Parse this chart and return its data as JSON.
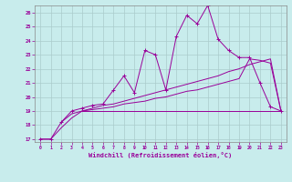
{
  "xlabel": "Windchill (Refroidissement éolien,°C)",
  "background_color": "#c8ecec",
  "line_color": "#990099",
  "grid_color": "#aacccc",
  "xmin": 0,
  "xmax": 23,
  "ymin": 17,
  "ymax": 26,
  "x_ticks": [
    0,
    1,
    2,
    3,
    4,
    5,
    6,
    7,
    8,
    9,
    10,
    11,
    12,
    13,
    14,
    15,
    16,
    17,
    18,
    19,
    20,
    21,
    22,
    23
  ],
  "y_ticks": [
    17,
    18,
    19,
    20,
    21,
    22,
    23,
    24,
    25,
    26
  ],
  "series1_x": [
    0,
    1,
    2,
    3,
    4,
    5,
    6,
    7,
    8,
    9,
    10,
    11,
    12,
    13,
    14,
    15,
    16,
    17,
    18,
    19,
    20,
    21,
    22,
    23
  ],
  "series1_y": [
    17.0,
    17.0,
    18.2,
    19.0,
    19.2,
    19.4,
    19.5,
    20.5,
    21.5,
    20.3,
    23.3,
    23.0,
    20.5,
    24.3,
    25.8,
    25.2,
    26.5,
    24.1,
    23.3,
    22.8,
    22.8,
    21.0,
    19.3,
    19.0
  ],
  "series2_x": [
    2,
    3,
    4,
    5,
    6,
    7,
    8,
    9,
    10,
    11,
    12,
    13,
    14,
    15,
    16,
    17,
    18,
    19,
    20,
    21,
    22,
    23
  ],
  "series2_y": [
    18.2,
    18.8,
    19.0,
    19.2,
    19.4,
    19.5,
    19.7,
    19.9,
    20.1,
    20.3,
    20.5,
    20.7,
    20.9,
    21.1,
    21.3,
    21.5,
    21.8,
    22.0,
    22.3,
    22.5,
    22.7,
    19.0
  ],
  "series3_x": [
    0,
    1,
    2,
    3,
    4,
    5,
    6,
    7,
    8,
    9,
    10,
    11,
    12,
    13,
    14,
    15,
    16,
    17,
    18,
    19,
    20,
    21,
    22,
    23
  ],
  "series3_y": [
    17.0,
    17.0,
    17.8,
    18.5,
    19.0,
    19.1,
    19.2,
    19.3,
    19.5,
    19.6,
    19.7,
    19.9,
    20.0,
    20.2,
    20.4,
    20.5,
    20.7,
    20.9,
    21.1,
    21.3,
    22.7,
    22.6,
    22.4,
    19.0
  ],
  "series4_x": [
    4,
    5,
    6,
    7,
    8,
    9,
    10,
    11,
    12,
    13,
    14,
    15,
    16,
    17,
    18,
    19,
    20,
    21,
    22,
    23
  ],
  "series4_y": [
    19.0,
    19.0,
    19.0,
    19.0,
    19.0,
    19.0,
    19.0,
    19.0,
    19.0,
    19.0,
    19.0,
    19.0,
    19.0,
    19.0,
    19.0,
    19.0,
    19.0,
    19.0,
    19.0,
    19.0
  ]
}
